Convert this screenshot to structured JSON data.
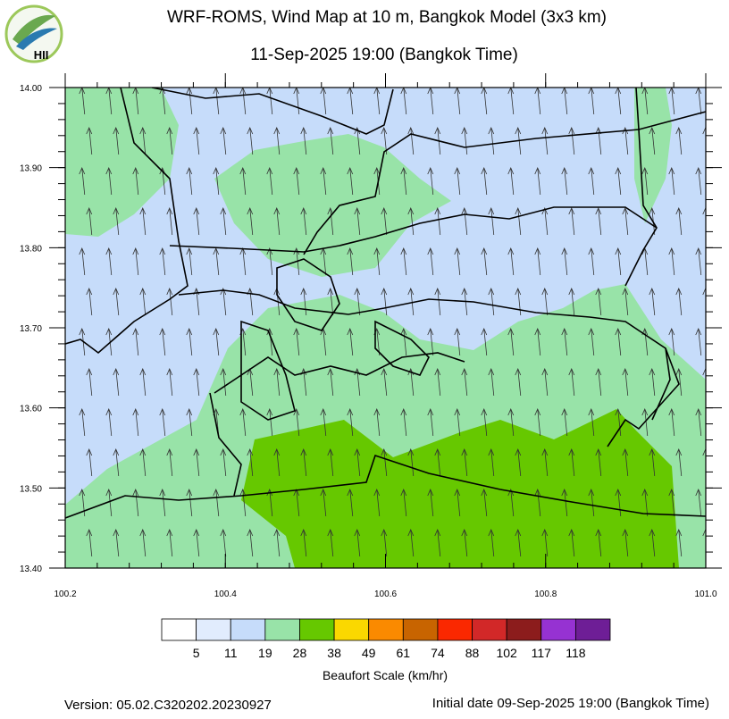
{
  "header": {
    "title": "WRF-ROMS, Wind Map at 10 m, Bangkok Model (3x3 km)",
    "subtitle": "11-Sep-2025 19:00 (Bangkok Time)",
    "logo_text": "HII"
  },
  "map": {
    "xlim": [
      100.2,
      101.0
    ],
    "ylim": [
      13.4,
      14.0
    ],
    "xticks": [
      100.2,
      100.4,
      100.6,
      100.8,
      {
        "value": 101.0,
        "label": "101.0"
      }
    ],
    "yticks": [
      {
        "value": 13.4,
        "label": "13.40"
      },
      {
        "value": 13.5,
        "label": "13.50"
      },
      {
        "value": 13.6,
        "label": "13.60"
      },
      {
        "value": 13.7,
        "label": "13.70"
      },
      {
        "value": 13.8,
        "label": "13.80"
      },
      {
        "value": 13.9,
        "label": "13.90"
      },
      {
        "value": 14.0,
        "label": "14.00"
      }
    ]
  },
  "colorbar": {
    "title": "Beaufort Scale (km/hr)",
    "labels": [
      5,
      11,
      19,
      28,
      38,
      49,
      61,
      74,
      88,
      102,
      117,
      118
    ],
    "colors": [
      "#ffffff",
      "#e1ecfd",
      "#c6dcfa",
      "#98e3a8",
      "#66c800",
      "#fad800",
      "#fa8a00",
      "#c86400",
      "#fa2800",
      "#d22828",
      "#8c1c1c",
      "#9632d2",
      "#6e1e96"
    ]
  },
  "footer": {
    "version": "Version: 05.02.C320202.20230927",
    "initial_date": "Initial date 09-Sep-2025 19:00 (Bangkok Time)"
  }
}
